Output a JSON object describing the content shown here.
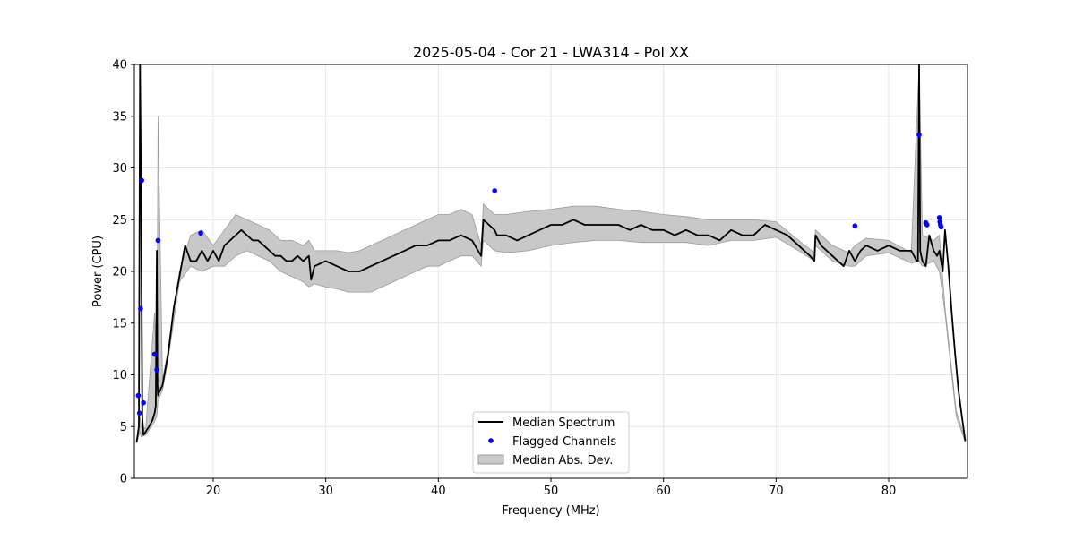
{
  "chart_data": {
    "type": "line",
    "title": "2025-05-04 - Cor 21 - LWA314 - Pol XX",
    "xlabel": "Frequency (MHz)",
    "ylabel": "Power (CPU)",
    "xlim": [
      13,
      87
    ],
    "ylim": [
      0,
      40
    ],
    "x_ticks": [
      20,
      30,
      40,
      50,
      60,
      70,
      80
    ],
    "y_ticks": [
      0,
      5,
      10,
      15,
      20,
      25,
      30,
      35,
      40
    ],
    "grid": true,
    "legend_position": "lower center",
    "legend": [
      "Median Spectrum",
      "Flagged Channels",
      "Median Abs. Dev."
    ],
    "colors": {
      "median": "#000000",
      "flagged": "#0000ff",
      "mad_fill": "#c8c8c8",
      "mad_edge": "#9a9a9a",
      "grid": "#e6e6e6"
    },
    "series": [
      {
        "name": "Median Spectrum",
        "x": [
          13.2,
          13.4,
          13.5,
          13.6,
          13.7,
          13.8,
          13.9,
          14.0,
          14.3,
          14.6,
          14.8,
          14.9,
          15.0,
          15.05,
          15.1,
          15.2,
          15.5,
          16.0,
          16.5,
          17.0,
          17.5,
          18.0,
          18.5,
          19.0,
          19.5,
          20.0,
          20.5,
          21.0,
          21.5,
          22.0,
          22.5,
          23.0,
          23.5,
          24.0,
          24.5,
          25.0,
          25.5,
          26.0,
          26.5,
          27.0,
          27.5,
          28.0,
          28.5,
          28.7,
          29.0,
          30.0,
          31.0,
          32.0,
          33.0,
          34.0,
          35.0,
          36.0,
          37.0,
          38.0,
          39.0,
          40.0,
          41.0,
          42.0,
          43.0,
          43.8,
          44.0,
          44.5,
          45.0,
          45.2,
          46.0,
          47.0,
          48.0,
          49.0,
          50.0,
          51.0,
          52.0,
          53.0,
          54.0,
          55.0,
          56.0,
          57.0,
          58.0,
          59.0,
          60.0,
          61.0,
          62.0,
          63.0,
          64.0,
          65.0,
          66.0,
          67.0,
          68.0,
          69.0,
          70.0,
          71.0,
          72.0,
          73.0,
          73.4,
          73.5,
          74.0,
          75.0,
          76.0,
          76.5,
          77.0,
          77.5,
          78.0,
          79.0,
          80.0,
          81.0,
          82.0,
          82.5,
          82.6,
          82.7,
          82.8,
          83.0,
          83.3,
          83.6,
          84.0,
          84.3,
          84.5,
          84.8,
          85.0,
          85.3,
          85.6,
          85.9,
          86.2,
          86.5,
          86.8
        ],
        "y": [
          3.5,
          5.0,
          40.0,
          27.5,
          6.0,
          4.2,
          4.3,
          4.5,
          5.0,
          5.6,
          6.3,
          7.0,
          22.0,
          9.0,
          8.0,
          8.3,
          9.0,
          12.0,
          16.5,
          19.5,
          22.5,
          21.0,
          21.0,
          22.0,
          21.0,
          22.0,
          21.0,
          22.5,
          23.0,
          23.5,
          24.0,
          23.5,
          23.0,
          23.0,
          22.5,
          22.0,
          21.5,
          21.5,
          21.0,
          21.0,
          21.5,
          21.0,
          21.5,
          19.2,
          20.5,
          21.0,
          20.5,
          20.0,
          20.0,
          20.5,
          21.0,
          21.5,
          22.0,
          22.5,
          22.5,
          23.0,
          23.0,
          23.5,
          23.0,
          21.5,
          25.0,
          24.5,
          24.0,
          23.5,
          23.5,
          23.0,
          23.5,
          24.0,
          24.5,
          24.5,
          25.0,
          24.5,
          24.5,
          24.5,
          24.5,
          24.0,
          24.5,
          24.0,
          24.0,
          23.5,
          24.0,
          23.5,
          23.5,
          23.0,
          24.0,
          23.5,
          23.5,
          24.5,
          24.0,
          23.5,
          22.5,
          21.5,
          21.0,
          23.5,
          22.5,
          21.5,
          20.5,
          22.0,
          21.0,
          22.0,
          22.5,
          22.0,
          22.5,
          22.0,
          22.0,
          21.0,
          21.0,
          40.0,
          22.0,
          21.0,
          20.5,
          23.5,
          22.0,
          21.5,
          22.0,
          20.0,
          24.0,
          20.5,
          16.0,
          12.0,
          8.5,
          6.0,
          3.6
        ]
      },
      {
        "name": "Flagged Channels",
        "x": [
          13.35,
          13.45,
          13.55,
          13.65,
          13.8,
          14.8,
          15.0,
          15.1,
          18.9,
          45.0,
          77.0,
          82.7,
          83.3,
          83.4,
          84.5,
          84.55,
          84.6,
          84.65
        ],
        "y": [
          8.0,
          6.3,
          16.4,
          28.8,
          7.3,
          12.0,
          10.5,
          23.0,
          23.7,
          27.8,
          24.4,
          33.2,
          24.7,
          24.5,
          25.2,
          24.8,
          24.5,
          24.3
        ]
      }
    ],
    "mad_band": {
      "name": "Median Abs. Dev.",
      "x": [
        13.2,
        13.5,
        13.6,
        14.0,
        14.8,
        15.0,
        15.1,
        15.5,
        16.0,
        17.0,
        18.0,
        19.0,
        20.0,
        21.0,
        22.0,
        23.0,
        24.0,
        25.0,
        26.0,
        27.0,
        28.0,
        28.5,
        29.0,
        30.0,
        31.0,
        32.0,
        33.0,
        34.0,
        35.0,
        36.0,
        37.0,
        38.0,
        39.0,
        40.0,
        41.0,
        42.0,
        43.0,
        43.8,
        44.0,
        45.0,
        46.0,
        48.0,
        50.0,
        52.0,
        54.0,
        56.0,
        58.0,
        60.0,
        62.0,
        64.0,
        66.0,
        68.0,
        70.0,
        72.0,
        73.4,
        73.5,
        75.0,
        76.5,
        77.0,
        78.0,
        80.0,
        82.0,
        82.7,
        83.0,
        84.0,
        84.5,
        85.0,
        86.0,
        86.8
      ],
      "lower": [
        3.4,
        4.5,
        4.0,
        4.2,
        5.5,
        6.0,
        7.5,
        8.5,
        11.5,
        19.0,
        20.5,
        20.0,
        20.5,
        20.5,
        21.5,
        22.0,
        21.5,
        21.0,
        20.0,
        19.5,
        19.0,
        18.5,
        18.8,
        18.5,
        18.3,
        18.0,
        18.0,
        18.0,
        18.5,
        19.0,
        19.5,
        20.0,
        20.5,
        20.5,
        21.0,
        21.5,
        21.5,
        20.5,
        23.0,
        22.0,
        21.8,
        22.0,
        22.5,
        22.8,
        23.0,
        23.0,
        22.8,
        22.8,
        22.8,
        22.5,
        23.0,
        23.0,
        23.3,
        22.0,
        21.0,
        22.5,
        21.0,
        20.5,
        20.5,
        21.5,
        21.8,
        20.8,
        21.0,
        20.5,
        21.0,
        20.0,
        16.0,
        6.0,
        3.5
      ],
      "upper": [
        3.6,
        6.0,
        5.0,
        4.8,
        16.0,
        9.0,
        35.0,
        9.5,
        12.5,
        20.0,
        23.5,
        24.0,
        22.5,
        24.0,
        25.5,
        25.0,
        24.5,
        24.0,
        23.0,
        23.0,
        22.5,
        23.0,
        22.0,
        22.0,
        22.0,
        21.8,
        22.0,
        22.5,
        23.0,
        23.5,
        24.0,
        24.5,
        25.0,
        25.5,
        25.5,
        26.0,
        25.5,
        22.5,
        26.5,
        25.5,
        25.5,
        25.8,
        26.0,
        26.3,
        26.3,
        26.0,
        25.8,
        25.5,
        25.3,
        25.0,
        25.0,
        25.0,
        24.8,
        23.0,
        21.8,
        24.0,
        22.5,
        21.8,
        22.5,
        23.2,
        23.0,
        21.8,
        40.0,
        23.5,
        23.0,
        23.5,
        16.5,
        6.5,
        3.8
      ]
    }
  }
}
